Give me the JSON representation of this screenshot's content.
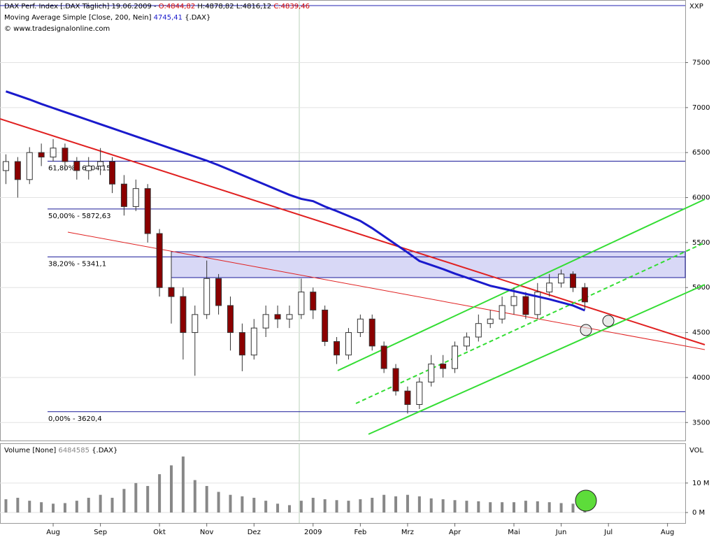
{
  "chart_data": {
    "type": "candlestick",
    "header": {
      "symbol": "DAX Perf. Index [.DAX Täglich] 19.06.2009 -",
      "open": "O:4844,82",
      "high": "H:4878,82",
      "low": "L:4816,12",
      "close": "C:4839,46"
    },
    "source": "© www.tradesignalonline.com",
    "y_caption": "XXP",
    "categories": [
      null,
      null,
      null,
      null,
      "Aug",
      null,
      null,
      null,
      "Sep",
      null,
      null,
      null,
      null,
      "Okt",
      null,
      null,
      null,
      "Nov",
      null,
      null,
      null,
      "Dez",
      null,
      null,
      null,
      null,
      "2009",
      null,
      null,
      null,
      "Feb",
      null,
      null,
      null,
      "Mrz",
      null,
      null,
      null,
      "Apr",
      null,
      null,
      null,
      null,
      "Mai",
      null,
      null,
      null,
      "Jun",
      null,
      null,
      null,
      "Jul",
      null,
      null,
      null,
      null,
      "Aug",
      null
    ],
    "open": [
      6300,
      6400,
      6200,
      6500,
      6450,
      6550,
      6400,
      6300,
      6350,
      6400,
      6150,
      5900,
      6100,
      5600,
      5000,
      4900,
      4500,
      4700,
      5100,
      4800,
      4500,
      4250,
      4550,
      4700,
      4650,
      4700,
      4950,
      4750,
      4400,
      4250,
      4500,
      4650,
      4350,
      4100,
      3850,
      3700,
      3950,
      4150,
      4100,
      4350,
      4450,
      4600,
      4650,
      4800,
      4900,
      4700,
      4950,
      5050,
      5150,
      5000,
      null,
      null,
      null,
      null,
      null,
      null,
      null,
      null
    ],
    "high": [
      6480,
      6450,
      6560,
      6600,
      6650,
      6600,
      6450,
      6450,
      6550,
      6450,
      6250,
      6200,
      6150,
      5650,
      5400,
      5000,
      4800,
      5300,
      5150,
      4900,
      4600,
      4650,
      4800,
      4800,
      4800,
      5100,
      5000,
      4800,
      4450,
      4550,
      4700,
      4700,
      4400,
      4150,
      3900,
      4000,
      4250,
      4250,
      4400,
      4500,
      4700,
      4750,
      4900,
      5000,
      4950,
      5050,
      5150,
      5200,
      5180,
      5050,
      null,
      null,
      null,
      null,
      null,
      null,
      null,
      null
    ],
    "low": [
      6150,
      6000,
      6150,
      6350,
      6400,
      6300,
      6200,
      6200,
      6250,
      6050,
      5800,
      5850,
      5500,
      4900,
      4600,
      4200,
      4020,
      4650,
      4700,
      4300,
      4070,
      4200,
      4450,
      4550,
      4550,
      4650,
      4650,
      4350,
      4150,
      4200,
      4450,
      4300,
      4050,
      3800,
      3600,
      3650,
      3900,
      4000,
      4050,
      4300,
      4400,
      4550,
      4600,
      4700,
      4650,
      4650,
      4900,
      5000,
      4950,
      4750,
      null,
      null,
      null,
      null,
      null,
      null,
      null,
      null
    ],
    "close": [
      6400,
      6200,
      6500,
      6450,
      6550,
      6400,
      6300,
      6350,
      6400,
      6150,
      5900,
      6100,
      5600,
      5000,
      4900,
      4500,
      4700,
      5100,
      4800,
      4500,
      4250,
      4550,
      4700,
      4650,
      4700,
      4950,
      4750,
      4400,
      4250,
      4500,
      4650,
      4350,
      4100,
      3850,
      3700,
      3950,
      4150,
      4100,
      4350,
      4450,
      4600,
      4650,
      4800,
      4900,
      4700,
      4950,
      5050,
      5150,
      5000,
      4840,
      null,
      null,
      null,
      null,
      null,
      null,
      null,
      null
    ],
    "series": [
      {
        "name": "Moving Average Simple [Close, 200, Nein]",
        "color": "#1a1acc",
        "value_label": "4745,41",
        "suffix": "{.DAX}",
        "values": [
          7180,
          7135,
          7090,
          7040,
          6995,
          6950,
          6905,
          6860,
          6815,
          6770,
          6725,
          6680,
          6635,
          6590,
          6545,
          6500,
          6455,
          6410,
          6360,
          6305,
          6250,
          6195,
          6140,
          6085,
          6030,
          5985,
          5960,
          5900,
          5850,
          5795,
          5740,
          5660,
          5570,
          5480,
          5390,
          5295,
          5250,
          5205,
          5155,
          5110,
          5065,
          5020,
          4990,
          4960,
          4930,
          4900,
          4870,
          4835,
          4800,
          4745.41,
          null,
          null,
          null,
          null,
          null,
          null,
          null,
          null
        ]
      }
    ],
    "fib_levels": [
      {
        "value": 6404.15,
        "label": "61,80% - 6404,15"
      },
      {
        "value": 5872.63,
        "label": "50,00% - 5872,63"
      },
      {
        "value": 5341.1,
        "label": "38,20% - 5341,1"
      },
      {
        "value": 3620.4,
        "label": "0,00% - 3620,4"
      }
    ],
    "ylim": [
      3300,
      8180
    ],
    "yticks": [
      3500,
      4000,
      4500,
      5000,
      5500,
      6000,
      6500,
      7000,
      7500
    ],
    "volume": {
      "name": "Volume [None]",
      "value_label": "6484585",
      "suffix": "{.DAX}",
      "caption": "VOL",
      "color": "#888888",
      "values": [
        4500000,
        5000000,
        4000000,
        3500000,
        3000000,
        3200000,
        4000000,
        5000000,
        6000000,
        5000000,
        8000000,
        10000000,
        9000000,
        13000000,
        16000000,
        19000000,
        11000000,
        9000000,
        7000000,
        6000000,
        5500000,
        5000000,
        4000000,
        3000000,
        2500000,
        4000000,
        5000000,
        4500000,
        4200000,
        4000000,
        4500000,
        5000000,
        6000000,
        5500000,
        6000000,
        5500000,
        4800000,
        4500000,
        4200000,
        4000000,
        3800000,
        3500000,
        3500000,
        3500000,
        4000000,
        3800000,
        3500000,
        3200000,
        3000000,
        6484585,
        null,
        null,
        null,
        null,
        null,
        null,
        null,
        null
      ],
      "ylim": [
        0,
        23000000
      ],
      "yticks": [
        {
          "value": 0,
          "label": "0 M"
        },
        {
          "value": 10000000,
          "label": "10 M"
        }
      ]
    }
  }
}
